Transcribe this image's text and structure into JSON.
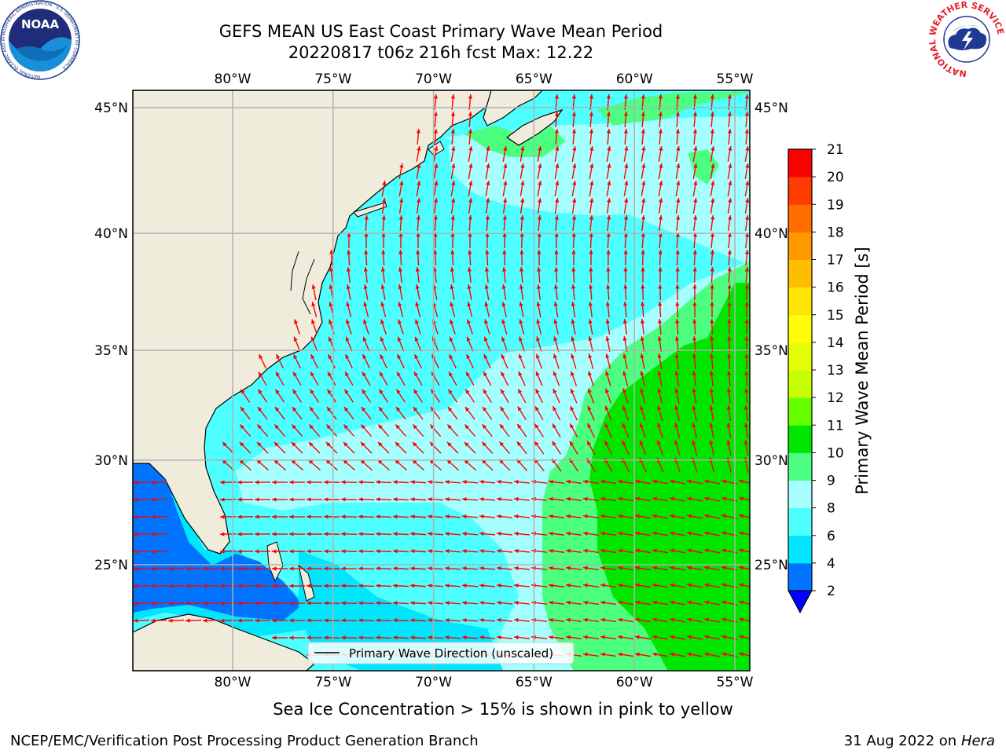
{
  "header": {
    "title_line1": "GEFS MEAN US East Coast Primary Wave Mean Period",
    "title_line2": "20220817 t06z 216h fcst   Max: 12.22"
  },
  "logos": {
    "noaa_text": "NOAA",
    "noaa_ring_text": "NATIONAL OCEANIC AND ATMOSPHERIC ADMINISTRATION · U.S. DEPARTMENT OF COMMERCE",
    "nws_ring_text": "NATIONAL WEATHER SERVICE"
  },
  "map": {
    "lon_range": [
      -85,
      -54.2
    ],
    "lat_range": [
      20.5,
      45.8
    ],
    "lon_ticks": [
      "80°W",
      "75°W",
      "70°W",
      "65°W",
      "60°W",
      "55°W"
    ],
    "lon_tick_values": [
      -80,
      -75,
      -70,
      -65,
      -60,
      -55
    ],
    "lat_ticks": [
      "45°N",
      "40°N",
      "35°N",
      "30°N",
      "25°N"
    ],
    "lat_tick_values": [
      45,
      40,
      35,
      30,
      25
    ],
    "land_color": "#efecdc",
    "grid_color": "#b0b0b0",
    "arrow_color": "#ff0000",
    "legend_label": "Primary Wave Direction (unscaled)"
  },
  "colorbar": {
    "label": "Primary Wave Mean Period [s]",
    "levels": [
      "2",
      "4",
      "6",
      "8",
      "9",
      "10",
      "11",
      "12",
      "13",
      "14",
      "15",
      "16",
      "17",
      "18",
      "19",
      "20",
      "21"
    ],
    "colors": [
      "#0073ff",
      "#00e6ff",
      "#4dffff",
      "#a6ffff",
      "#4dff80",
      "#00e600",
      "#66ff00",
      "#c8ff00",
      "#e6ff00",
      "#ffff00",
      "#ffe600",
      "#ffbf00",
      "#ff9900",
      "#ff6e00",
      "#ff3c00",
      "#ff0000"
    ],
    "under_color": "#0000ff"
  },
  "footer": {
    "ice_note": "Sea Ice Concentration > 15% is shown in pink to yellow",
    "left": "NCEP/EMC/Verification Post Processing Product Generation Branch",
    "date": "31 Aug 2022 on",
    "machine": "Hera"
  }
}
